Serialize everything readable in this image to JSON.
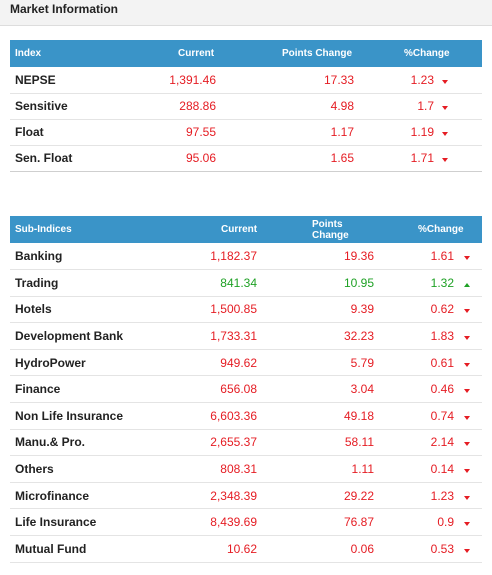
{
  "panel": {
    "title": "Market Information"
  },
  "colors": {
    "header_bg": "#3a94c8",
    "negative": "#e51c23",
    "positive": "#1fa125"
  },
  "index_table": {
    "headers": [
      "Index",
      "Current",
      "Points Change",
      "%Change"
    ],
    "rows": [
      {
        "name": "NEPSE",
        "current": "1,391.46",
        "points": "17.33",
        "pct": "1.23",
        "dir": "down"
      },
      {
        "name": "Sensitive",
        "current": "288.86",
        "points": "4.98",
        "pct": "1.7",
        "dir": "down"
      },
      {
        "name": "Float",
        "current": "97.55",
        "points": "1.17",
        "pct": "1.19",
        "dir": "down"
      },
      {
        "name": "Sen. Float",
        "current": "95.06",
        "points": "1.65",
        "pct": "1.71",
        "dir": "down"
      }
    ]
  },
  "subindex_table": {
    "headers": [
      "Sub-Indices",
      "Current",
      "Points Change",
      "%Change"
    ],
    "rows": [
      {
        "name": "Banking",
        "current": "1,182.37",
        "points": "19.36",
        "pct": "1.61",
        "dir": "down"
      },
      {
        "name": "Trading",
        "current": "841.34",
        "points": "10.95",
        "pct": "1.32",
        "dir": "up"
      },
      {
        "name": "Hotels",
        "current": "1,500.85",
        "points": "9.39",
        "pct": "0.62",
        "dir": "down"
      },
      {
        "name": "Development Bank",
        "current": "1,733.31",
        "points": "32.23",
        "pct": "1.83",
        "dir": "down"
      },
      {
        "name": "HydroPower",
        "current": "949.62",
        "points": "5.79",
        "pct": "0.61",
        "dir": "down"
      },
      {
        "name": "Finance",
        "current": "656.08",
        "points": "3.04",
        "pct": "0.46",
        "dir": "down"
      },
      {
        "name": "Non Life Insurance",
        "current": "6,603.36",
        "points": "49.18",
        "pct": "0.74",
        "dir": "down"
      },
      {
        "name": "Manu.& Pro.",
        "current": "2,655.37",
        "points": "58.11",
        "pct": "2.14",
        "dir": "down"
      },
      {
        "name": "Others",
        "current": "808.31",
        "points": "1.11",
        "pct": "0.14",
        "dir": "down"
      },
      {
        "name": "Microfinance",
        "current": "2,348.39",
        "points": "29.22",
        "pct": "1.23",
        "dir": "down"
      },
      {
        "name": "Life Insurance",
        "current": "8,439.69",
        "points": "76.87",
        "pct": "0.9",
        "dir": "down"
      },
      {
        "name": "Mutual Fund",
        "current": "10.62",
        "points": "0.06",
        "pct": "0.53",
        "dir": "down"
      }
    ]
  }
}
